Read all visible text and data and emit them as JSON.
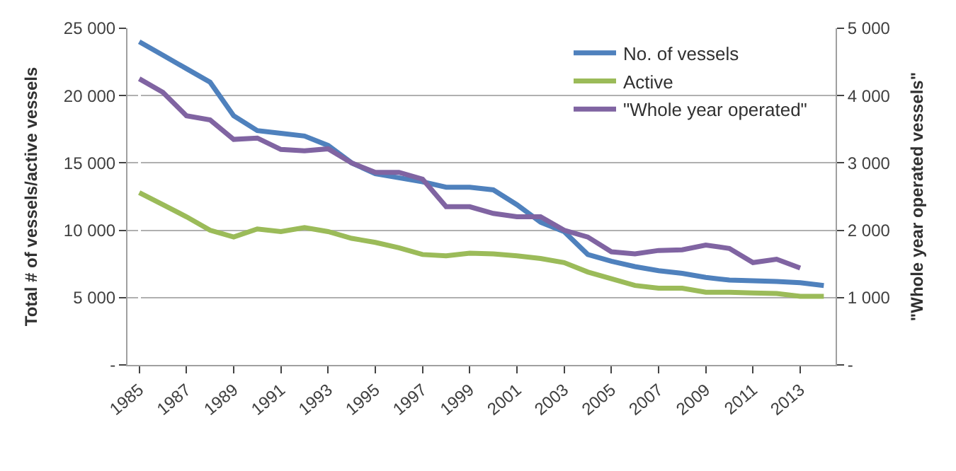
{
  "chart_data": {
    "type": "line",
    "xlabel": null,
    "ylabel": "Total # of vessels/active vessels",
    "y2label": "\"Whole year operated vessels\"",
    "categories": [
      "1985",
      null,
      "1987",
      null,
      "1989",
      null,
      "1991",
      null,
      "1993",
      null,
      "1995",
      null,
      "1997",
      null,
      "1999",
      null,
      "2001",
      null,
      "2003",
      null,
      "2005",
      null,
      "2007",
      null,
      "2009",
      null,
      "2011",
      null,
      "2013",
      null
    ],
    "series": [
      {
        "name": "No. of vessels",
        "color": "#4f81bd",
        "values": [
          24000,
          23000,
          22000,
          21000,
          18500,
          17400,
          17200,
          17000,
          16300,
          15000,
          14200,
          13900,
          13600,
          13200,
          13200,
          13000,
          11900,
          10600,
          9900,
          8200,
          7700,
          7300,
          7000,
          6800,
          6500,
          6300,
          6250,
          6200,
          6100,
          5900
        ]
      },
      {
        "name": "Active",
        "color": "#9bbb59",
        "values": [
          12800,
          11900,
          11000,
          10000,
          9500,
          10100,
          9900,
          10200,
          9900,
          9400,
          9100,
          8700,
          8200,
          8100,
          8300,
          8250,
          8100,
          7900,
          7600,
          6900,
          6400,
          5900,
          5700,
          5700,
          5400,
          5400,
          5350,
          5300,
          5100,
          5100
        ]
      },
      {
        "name": "\"Whole year operated\"",
        "color": "#8064a2",
        "axis": "y2",
        "values": [
          4250,
          4050,
          3700,
          3640,
          3350,
          3370,
          3200,
          3180,
          3210,
          3000,
          2860,
          2860,
          2760,
          2350,
          2350,
          2250,
          2200,
          2200,
          2000,
          1900,
          1680,
          1650,
          1700,
          1710,
          1780,
          1730,
          1520,
          1570,
          1440,
          null
        ]
      }
    ],
    "ylim": [
      0,
      25000
    ],
    "yticks": [
      {
        "value": 0,
        "label": "-"
      },
      {
        "value": 5000,
        "label": "5 000"
      },
      {
        "value": 10000,
        "label": "10 000"
      },
      {
        "value": 15000,
        "label": "15 000"
      },
      {
        "value": 20000,
        "label": "20 000"
      },
      {
        "value": 25000,
        "label": "25 000"
      }
    ],
    "y2lim": [
      0,
      5000
    ],
    "y2ticks": [
      {
        "value": 0,
        "label": "-"
      },
      {
        "value": 1000,
        "label": "1 000"
      },
      {
        "value": 2000,
        "label": "2 000"
      },
      {
        "value": 3000,
        "label": "3 000"
      },
      {
        "value": 4000,
        "label": "4 000"
      },
      {
        "value": 5000,
        "label": "5 000"
      }
    ],
    "grid": "y",
    "legend": "top right",
    "marker": "none",
    "line_style": "solid"
  }
}
